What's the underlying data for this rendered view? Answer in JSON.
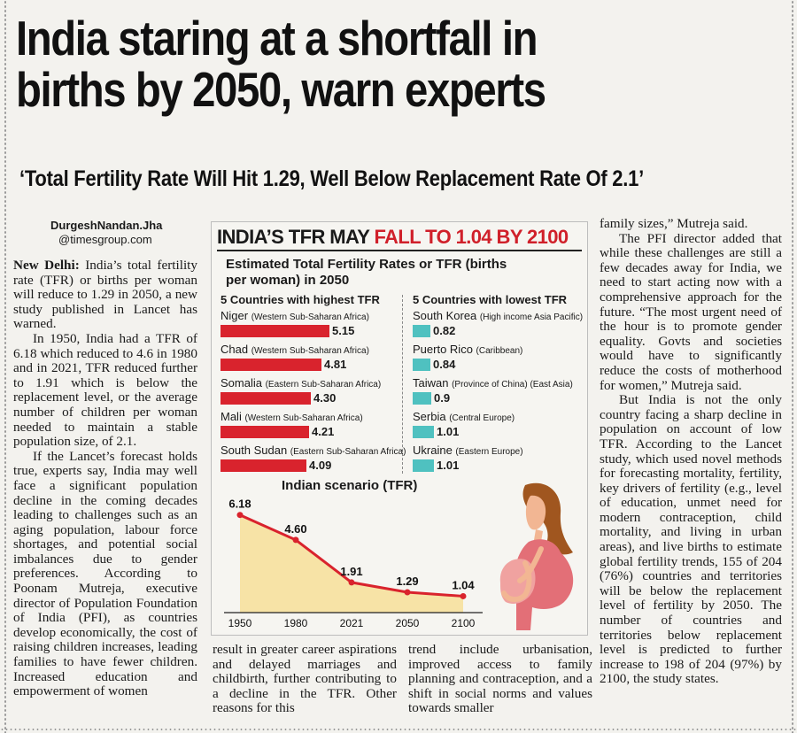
{
  "headline": {
    "line1": "India staring at a shortfall in",
    "line2": "births by 2050, warn experts"
  },
  "subhead": "‘Total Fertility Rate Will Hit 1.29, Well Below Replacement Rate Of 2.1’",
  "byline": {
    "name": "DurgeshNandan.Jha",
    "handle": "@timesgroup.com"
  },
  "article": {
    "col1": [
      {
        "lead": "New Delhi:",
        "text": " India’s total fertility rate (TFR) or births per woman will reduce to 1.29 in 2050, a new study published in Lancet has warned."
      },
      {
        "text": "In 1950, India had a TFR of 6.18 which reduced to 4.6 in 1980 and in 2021, TFR reduced further to 1.91 which is below the replacement level, or the average number of children per woman needed to maintain a stable population size, of 2.1."
      },
      {
        "text": "If the Lancet’s forecast holds true, experts say, India may well face a significant population decline in the coming decades leading to challenges such as an aging population, labour force shortages, and potential social imbalances due to gender preferences. According to Poonam Mutreja, executive director of Population Foundation of India (PFI), as countries develop economically, the cost of raising children increases, leading families to have fewer children. Increased education and empowerment of women"
      }
    ],
    "bottom1": "result in greater career aspirations and delayed marriages and childbirth, further contributing to a decline in the TFR. Other reasons for this",
    "bottom2": "trend include urbanisation, improved access to family planning and contraception, and a shift in social norms and values towards smaller",
    "col4": [
      {
        "text": "family sizes,” Mutreja said."
      },
      {
        "text": "The PFI director added that while these challenges are still a few decades away for India, we need to start acting now with a comprehensive approach for the future. “The most urgent need of the hour is to promote gender equality. Govts and societies would have to significantly reduce the costs of motherhood for women,” Mutreja said."
      },
      {
        "text": "But India is not the only country facing a sharp decline in population on account of low TFR. According to the Lancet study, which used novel methods for forecasting mortality, fertility, key drivers of fertility (e.g., level of education, unmet need for modern contraception, child mortality, and living in urban areas), and live births to estimate global fertility trends, 155 of 204 (76%) countries and territories will be below the replacement level of fertility by 2050. The number of countries and territories below replacement level is predicted to further increase to 198 of 204 (97%) by 2100, the study states."
      }
    ]
  },
  "infographic": {
    "title_black": "INDIA’S TFR MAY ",
    "title_red": "FALL TO 1.04 BY 2100",
    "chart_title": "Estimated Total Fertility Rates or TFR (births per woman) in 2050",
    "colors": {
      "high": "#d9232d",
      "low": "#4fc1c0",
      "headline_red": "#d0202a",
      "area": "#f7e3a6"
    }
  },
  "chart_data": [
    {
      "type": "bar",
      "title": "5 Countries with highest TFR",
      "categories": [
        "Niger",
        "Chad",
        "Somalia",
        "Mali",
        "South Sudan"
      ],
      "regions": [
        "(Western Sub-Saharan Africa)",
        "(Western Sub-Saharan Africa)",
        "(Eastern Sub-Saharan Africa)",
        "(Western Sub-Saharan Africa)",
        "(Eastern Sub-Saharan Africa)"
      ],
      "values": [
        5.15,
        4.81,
        4.3,
        4.21,
        4.09
      ],
      "labels": [
        "5.15",
        "4.81",
        "4.30",
        "4.21",
        "4.09"
      ]
    },
    {
      "type": "bar",
      "title": "5 Countries with lowest TFR",
      "categories": [
        "South Korea",
        "Puerto Rico",
        "Taiwan",
        "Serbia",
        "Ukraine"
      ],
      "regions": [
        "(High income Asia Pacific)",
        "(Caribbean)",
        "(Province of China) (East Asia)",
        "(Central Europe)",
        "(Eastern Europe)"
      ],
      "values": [
        0.82,
        0.84,
        0.9,
        1.01,
        1.01
      ],
      "labels": [
        "0.82",
        "0.84",
        "0.9",
        "1.01",
        "1.01"
      ]
    },
    {
      "type": "area",
      "title": "Indian scenario (TFR)",
      "x": [
        "1950",
        "1980",
        "2021",
        "2050",
        "2100"
      ],
      "values": [
        6.18,
        4.6,
        1.91,
        1.29,
        1.04
      ],
      "labels": [
        "6.18",
        "4.60",
        "1.91",
        "1.29",
        "1.04"
      ],
      "ylim": [
        0,
        6.5
      ]
    }
  ]
}
